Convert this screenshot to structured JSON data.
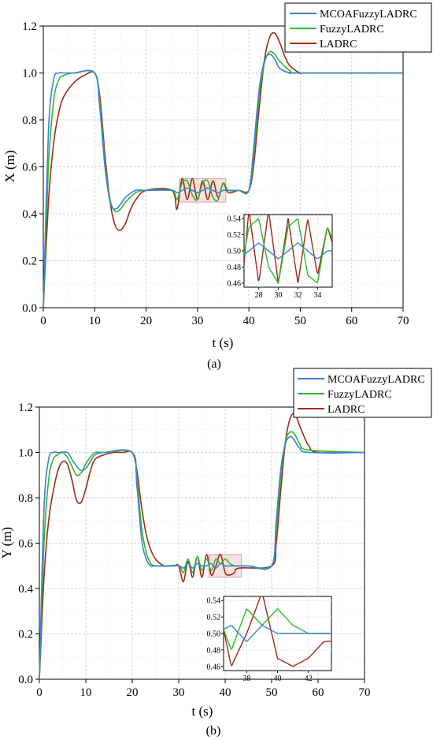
{
  "chart_data": [
    {
      "type": "line",
      "caption": "(a)",
      "xlabel": "t (s)",
      "ylabel": "X (m)",
      "xlim": [
        0,
        70
      ],
      "ylim": [
        0,
        1.2
      ],
      "xticks": [
        "0",
        "10",
        "20",
        "30",
        "40",
        "50",
        "60",
        "70"
      ],
      "yticks": [
        "0.0",
        "0.2",
        "0.4",
        "0.6",
        "0.8",
        "1.0",
        "1.2"
      ],
      "grid": true,
      "legend_position": "top-right",
      "series": [
        {
          "name": "MCOAFuzzyLADRC",
          "color": "#3b82d6",
          "x": [
            0,
            1,
            2,
            3,
            4,
            6,
            10,
            11,
            12,
            13,
            14,
            15,
            16,
            18,
            20,
            25,
            26,
            27,
            28,
            29,
            30,
            31,
            32,
            33,
            34,
            35,
            36,
            38,
            40,
            41,
            42,
            43,
            44,
            45,
            46,
            48,
            50,
            70
          ],
          "y": [
            0,
            0.75,
            0.97,
            1.0,
            1.0,
            1.0,
            1.0,
            0.85,
            0.6,
            0.45,
            0.42,
            0.44,
            0.47,
            0.5,
            0.5,
            0.5,
            0.49,
            0.5,
            0.51,
            0.5,
            0.49,
            0.5,
            0.51,
            0.5,
            0.49,
            0.5,
            0.5,
            0.5,
            0.5,
            0.7,
            0.93,
            1.05,
            1.08,
            1.06,
            1.02,
            1.0,
            1.0,
            1.0
          ]
        },
        {
          "name": "FuzzyLADRC",
          "color": "#2db82d",
          "x": [
            0,
            1,
            2,
            3,
            4,
            6,
            10,
            11,
            12,
            13,
            14,
            15,
            16,
            18,
            20,
            25,
            26,
            27,
            28,
            29,
            30,
            31,
            32,
            33,
            34,
            35,
            36,
            38,
            40,
            41,
            42,
            43,
            44,
            45,
            46,
            48,
            50,
            70
          ],
          "y": [
            0,
            0.6,
            0.88,
            0.97,
            0.99,
            1.0,
            1.0,
            0.87,
            0.62,
            0.46,
            0.41,
            0.42,
            0.45,
            0.49,
            0.5,
            0.5,
            0.46,
            0.53,
            0.54,
            0.48,
            0.46,
            0.53,
            0.54,
            0.47,
            0.46,
            0.53,
            0.5,
            0.5,
            0.5,
            0.66,
            0.9,
            1.04,
            1.09,
            1.08,
            1.05,
            1.01,
            1.0,
            1.0
          ]
        },
        {
          "name": "LADRC",
          "color": "#a02a12",
          "x": [
            0,
            1,
            2,
            3,
            4,
            6,
            8,
            10,
            11,
            12,
            13,
            14,
            15,
            16,
            17,
            18,
            20,
            25,
            26,
            27,
            28,
            29,
            30,
            31,
            32,
            33,
            34,
            35,
            36,
            38,
            40,
            41,
            42,
            43,
            44,
            45,
            46,
            47,
            48,
            50,
            52,
            70
          ],
          "y": [
            0,
            0.45,
            0.7,
            0.83,
            0.9,
            0.96,
            0.99,
            1.0,
            0.9,
            0.65,
            0.45,
            0.35,
            0.33,
            0.36,
            0.42,
            0.46,
            0.5,
            0.5,
            0.42,
            0.55,
            0.46,
            0.55,
            0.46,
            0.54,
            0.46,
            0.54,
            0.47,
            0.53,
            0.49,
            0.5,
            0.5,
            0.62,
            0.85,
            1.05,
            1.15,
            1.17,
            1.13,
            1.07,
            1.03,
            1.0,
            1.0,
            1.0
          ]
        }
      ],
      "inset": {
        "xlim": [
          26.5,
          35.5
        ],
        "ylim": [
          0.455,
          0.545
        ],
        "xticks": [
          "28",
          "30",
          "32",
          "34"
        ],
        "yticks": [
          "0.46",
          "0.48",
          "0.50",
          "0.52",
          "0.54"
        ],
        "zoom_box": {
          "x": [
            26.5,
            35.5
          ],
          "y": [
            0.45,
            0.55
          ]
        }
      }
    },
    {
      "type": "line",
      "caption": "(b)",
      "xlabel": "t (s)",
      "ylabel": "Y (m)",
      "xlim": [
        0,
        70
      ],
      "ylim": [
        0,
        1.2
      ],
      "xticks": [
        "0",
        "10",
        "20",
        "30",
        "40",
        "50",
        "60",
        "70"
      ],
      "yticks": [
        "0.0",
        "0.2",
        "0.4",
        "0.6",
        "0.8",
        "1.0",
        "1.2"
      ],
      "grid": true,
      "legend_position": "top-right",
      "series": [
        {
          "name": "MCOAFuzzyLADRC",
          "color": "#3b82d6",
          "x": [
            0,
            1,
            2,
            3,
            4,
            6,
            7,
            8,
            9,
            10,
            11,
            12,
            14,
            20,
            21,
            22,
            23,
            24,
            25,
            27,
            30,
            31,
            32,
            33,
            34,
            35,
            36,
            37,
            38,
            39,
            40,
            41,
            42,
            43,
            45,
            50,
            51,
            52,
            53,
            54,
            55,
            56,
            58,
            70
          ],
          "y": [
            0,
            0.75,
            0.97,
            1.0,
            1.0,
            1.0,
            0.97,
            0.94,
            0.92,
            0.93,
            0.96,
            0.99,
            1.0,
            1.0,
            0.85,
            0.62,
            0.53,
            0.5,
            0.5,
            0.5,
            0.5,
            0.49,
            0.51,
            0.49,
            0.51,
            0.5,
            0.5,
            0.51,
            0.49,
            0.51,
            0.5,
            0.5,
            0.5,
            0.5,
            0.5,
            0.5,
            0.7,
            0.93,
            1.04,
            1.07,
            1.05,
            1.02,
            1.0,
            1.0
          ]
        },
        {
          "name": "FuzzyLADRC",
          "color": "#2db82d",
          "x": [
            0,
            1,
            2,
            3,
            4,
            5,
            6,
            7,
            8,
            9,
            10,
            11,
            12,
            14,
            20,
            21,
            22,
            23,
            24,
            25,
            27,
            30,
            31,
            32,
            33,
            34,
            35,
            36,
            37,
            38,
            39,
            40,
            41,
            42,
            43,
            45,
            50,
            51,
            52,
            53,
            54,
            55,
            56,
            58,
            70
          ],
          "y": [
            0,
            0.6,
            0.88,
            0.97,
            0.99,
            1.0,
            0.98,
            0.94,
            0.9,
            0.91,
            0.95,
            0.98,
            1.0,
            1.0,
            1.0,
            0.88,
            0.67,
            0.56,
            0.51,
            0.5,
            0.5,
            0.5,
            0.47,
            0.53,
            0.47,
            0.54,
            0.48,
            0.53,
            0.48,
            0.53,
            0.51,
            0.53,
            0.51,
            0.5,
            0.5,
            0.5,
            0.5,
            0.66,
            0.9,
            1.05,
            1.09,
            1.08,
            1.04,
            1.01,
            1.0
          ]
        },
        {
          "name": "LADRC",
          "color": "#a02a12",
          "x": [
            0,
            1,
            2,
            3,
            4,
            5,
            6,
            7,
            8,
            9,
            10,
            11,
            12,
            14,
            16,
            18,
            20,
            21,
            22,
            23,
            24,
            25,
            26,
            27,
            29,
            30,
            31,
            32,
            33,
            34,
            35,
            36,
            37,
            38,
            39,
            40,
            41,
            42,
            43,
            50,
            51,
            52,
            53,
            54,
            55,
            56,
            57,
            58,
            60,
            70
          ],
          "y": [
            0,
            0.45,
            0.7,
            0.83,
            0.92,
            0.96,
            0.95,
            0.88,
            0.79,
            0.78,
            0.84,
            0.92,
            0.97,
            0.99,
            1.0,
            1.0,
            1.0,
            0.92,
            0.76,
            0.64,
            0.57,
            0.53,
            0.51,
            0.5,
            0.5,
            0.5,
            0.43,
            0.52,
            0.45,
            0.54,
            0.45,
            0.55,
            0.46,
            0.5,
            0.55,
            0.47,
            0.46,
            0.47,
            0.49,
            0.5,
            0.6,
            0.84,
            1.05,
            1.15,
            1.17,
            1.12,
            1.07,
            1.03,
            1.0,
            1.0
          ]
        }
      ],
      "inset": {
        "xlim": [
          36.5,
          43.5
        ],
        "ylim": [
          0.455,
          0.545
        ],
        "xticks": [
          "38",
          "40",
          "42"
        ],
        "yticks": [
          "0.46",
          "0.48",
          "0.50",
          "0.52",
          "0.54"
        ],
        "zoom_box": {
          "x": [
            36.5,
            43.5
          ],
          "y": [
            0.45,
            0.55
          ]
        }
      }
    }
  ]
}
